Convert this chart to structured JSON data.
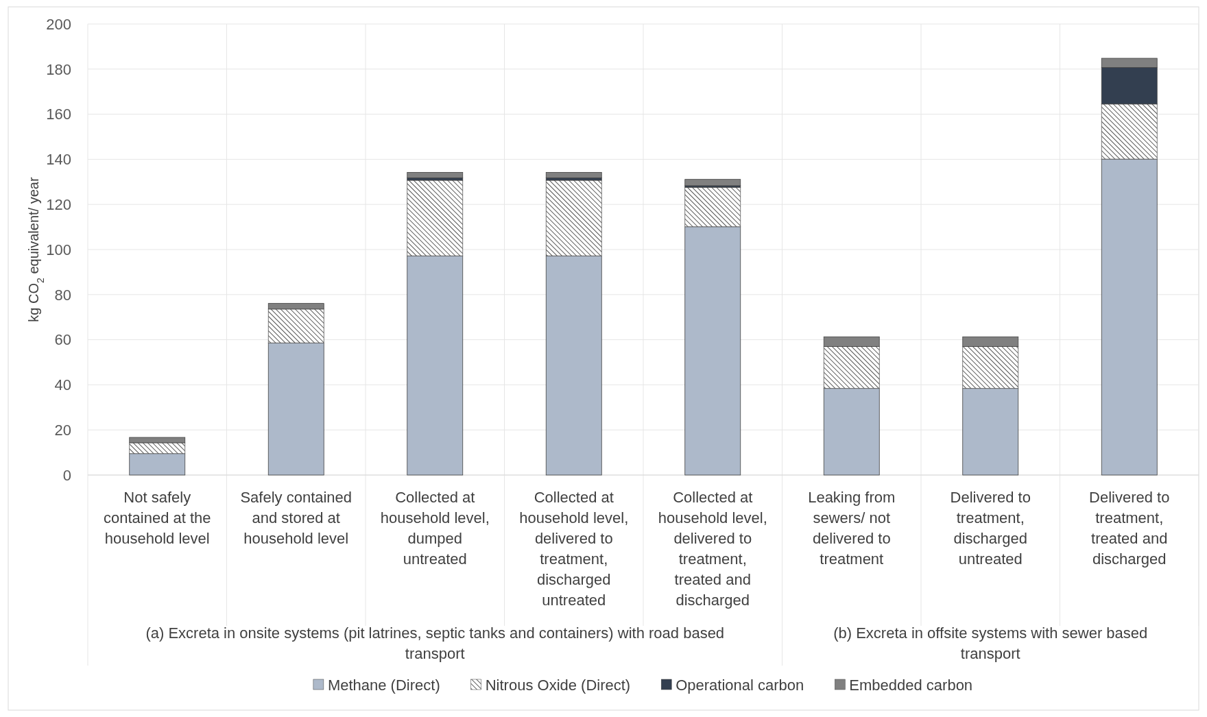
{
  "chart_data": {
    "type": "bar",
    "stacked": true,
    "ylabel": "kg CO$_{2}$ equivalent/ year",
    "categories": [
      "Not safely contained at the household level",
      "Safely contained and stored at household level",
      "Collected at household level, dumped untreated",
      "Collected at household level, delivered to treatment, discharged untreated",
      "Collected at household level, delivered to treatment, treated and discharged",
      "Leaking from sewers/ not delivered to treatment",
      "Delivered to treatment, discharged untreated",
      "Delivered to treatment, treated and discharged"
    ],
    "series": [
      {
        "name": "Methane (Direct)",
        "color": "#adb9ca",
        "values": [
          9.5,
          58.6,
          97.2,
          97.2,
          110.1,
          38.4,
          38.4,
          140.1
        ]
      },
      {
        "name": "Nitrous Oxide (Direct)",
        "color": "#595959",
        "values": [
          4.8,
          15,
          33.5,
          33.5,
          17.5,
          18.6,
          18.6,
          24.4
        ]
      },
      {
        "name": "Operational carbon",
        "color": "#333f50",
        "values": [
          0,
          0,
          1.1,
          1.1,
          0.7,
          0,
          0,
          16.2
        ]
      },
      {
        "name": "Embedded carbon",
        "color": "#808080",
        "values": [
          2.4,
          2.5,
          2.4,
          2.4,
          2.8,
          4.3,
          4.3,
          4.1
        ]
      }
    ],
    "ylim": [
      0,
      200
    ],
    "yticks": [
      0,
      20,
      40,
      60,
      80,
      100,
      120,
      140,
      160,
      180,
      200
    ],
    "grid": true,
    "legend": "bottom",
    "annotations": [
      "(a)    Excreta in onsite systems (pit latrines, septic tanks and containers) with road based transport",
      "(b) Excreta in offsite systems with sewer based transport"
    ]
  }
}
